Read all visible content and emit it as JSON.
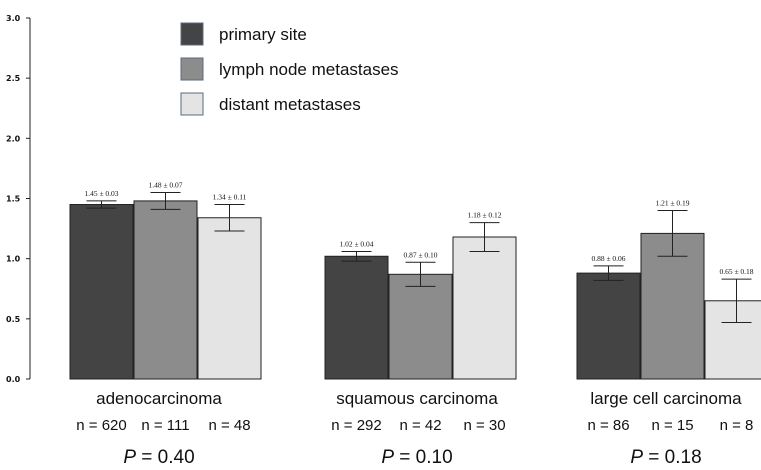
{
  "chart_data": {
    "type": "bar",
    "title": "",
    "xlabel": "",
    "ylabel": "",
    "ylim": [
      0,
      3.0
    ],
    "yticks": [
      "0.0",
      "0.5",
      "1.0",
      "1.5",
      "2.0",
      "2.5",
      "3.0"
    ],
    "grid": false,
    "legend_position": "top-left",
    "categories": [
      "adenocarcinoma",
      "squamous carcinoma",
      "large cell carcinoma"
    ],
    "series": [
      {
        "name": "primary site",
        "color": "#444444",
        "values": [
          1.45,
          1.02,
          0.88
        ],
        "errors": [
          0.03,
          0.04,
          0.06
        ],
        "labels": [
          "1.45 ± 0.03",
          "1.02 ± 0.04",
          "0.88 ± 0.06"
        ]
      },
      {
        "name": "lymph node metastases",
        "color": "#8c8c8c",
        "values": [
          1.48,
          0.87,
          1.21
        ],
        "errors": [
          0.07,
          0.1,
          0.19
        ],
        "labels": [
          "1.48 ± 0.07",
          "0.87 ± 0.10",
          "1.21 ± 0.19"
        ]
      },
      {
        "name": "distant metastases",
        "color": "#e4e4e4",
        "values": [
          1.34,
          1.18,
          0.65
        ],
        "errors": [
          0.11,
          0.12,
          0.18
        ],
        "labels": [
          "1.34 ± 0.11",
          "1.18 ± 0.12",
          "0.65 ± 0.18"
        ]
      }
    ],
    "sample_sizes": [
      [
        "n = 620",
        "n = 111",
        "n = 48"
      ],
      [
        "n = 292",
        "n = 42",
        "n = 30"
      ],
      [
        "n = 86",
        "n = 15",
        "n = 8"
      ]
    ],
    "p_values": [
      {
        "prefix": "P",
        "text": " = 0.40"
      },
      {
        "prefix": "P",
        "text": " = 0.10"
      },
      {
        "prefix": "P",
        "text": " = 0.18"
      }
    ]
  }
}
